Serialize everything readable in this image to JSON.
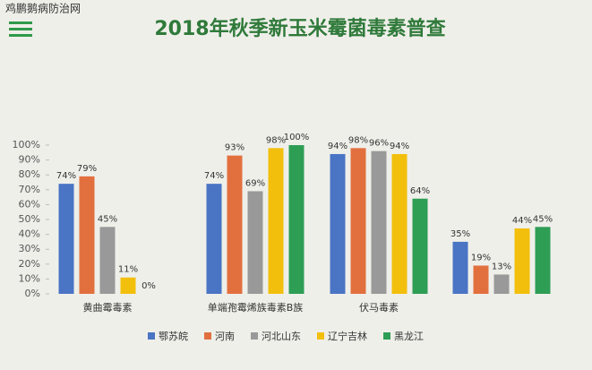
{
  "chart_data": {
    "type": "bar",
    "title": "2018年秋季新玉米霉菌毒素普查",
    "watermark": "鸡鹏鹅病防治网",
    "categories": [
      "黄曲霉毒素",
      "单端孢霉烯族毒素B族",
      "伏马毒素",
      null
    ],
    "series": [
      {
        "name": "鄂苏皖",
        "color": "#4a74c4",
        "values": [
          74,
          74,
          94,
          35
        ],
        "value_labels": [
          "74%",
          "74%",
          "94%",
          "35%"
        ]
      },
      {
        "name": "河南",
        "color": "#e2703f",
        "values": [
          79,
          93,
          98,
          19
        ],
        "value_labels": [
          "79%",
          "93%",
          "98%",
          "19%"
        ]
      },
      {
        "name": "河北山东",
        "color": "#999999",
        "values": [
          45,
          69,
          96,
          13
        ],
        "value_labels": [
          "45%",
          "69%",
          "96%",
          "13%"
        ]
      },
      {
        "name": "辽宁吉林",
        "color": "#f2bf0c",
        "values": [
          11,
          98,
          94,
          44
        ],
        "value_labels": [
          "11%",
          "98%",
          "94%",
          "44%"
        ]
      },
      {
        "name": "黑龙江",
        "color": "#2e9e55",
        "values": [
          0,
          100,
          64,
          45
        ],
        "value_labels": [
          "0%",
          "100%",
          "64%",
          "45%"
        ]
      }
    ],
    "ylim": [
      0,
      100
    ],
    "yticks": [
      {
        "value": 0,
        "label": "0%"
      },
      {
        "value": 10,
        "label": "10%"
      },
      {
        "value": 20,
        "label": "20%"
      },
      {
        "value": 30,
        "label": "30%"
      },
      {
        "value": 40,
        "label": "40%"
      },
      {
        "value": 50,
        "label": "50%"
      },
      {
        "value": 60,
        "label": "60%"
      },
      {
        "value": 70,
        "label": "70%"
      },
      {
        "value": 80,
        "label": "80%"
      },
      {
        "value": 90,
        "label": "90%"
      },
      {
        "value": 100,
        "label": "100%"
      }
    ]
  }
}
